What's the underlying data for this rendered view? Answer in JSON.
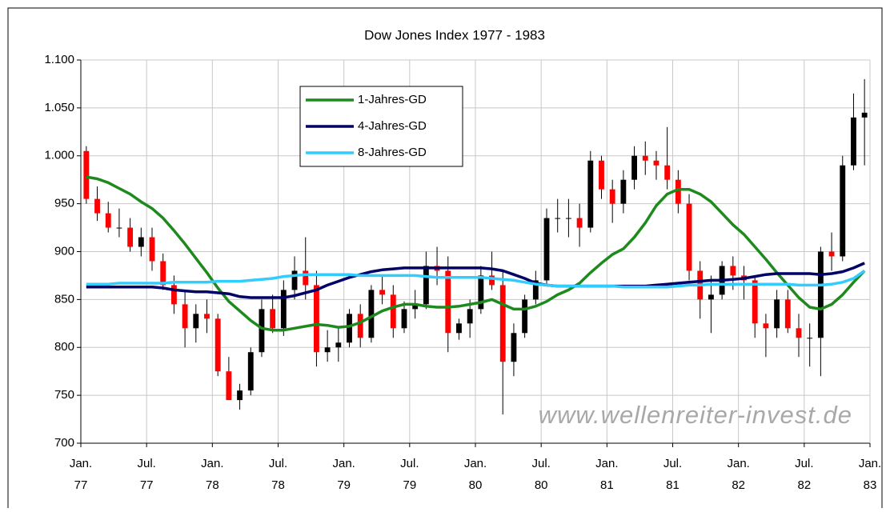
{
  "chart_data": {
    "type": "candlestick",
    "title": "Dow Jones Index 1977 - 1983",
    "x": [
      "1977-01",
      "1977-02",
      "1977-03",
      "1977-04",
      "1977-05",
      "1977-06",
      "1977-07",
      "1977-08",
      "1977-09",
      "1977-10",
      "1977-11",
      "1977-12",
      "1978-01",
      "1978-02",
      "1978-03",
      "1978-04",
      "1978-05",
      "1978-06",
      "1978-07",
      "1978-08",
      "1978-09",
      "1978-10",
      "1978-11",
      "1978-12",
      "1979-01",
      "1979-02",
      "1979-03",
      "1979-04",
      "1979-05",
      "1979-06",
      "1979-07",
      "1979-08",
      "1979-09",
      "1979-10",
      "1979-11",
      "1979-12",
      "1980-01",
      "1980-02",
      "1980-03",
      "1980-04",
      "1980-05",
      "1980-06",
      "1980-07",
      "1980-08",
      "1980-09",
      "1980-10",
      "1980-11",
      "1980-12",
      "1981-01",
      "1981-02",
      "1981-03",
      "1981-04",
      "1981-05",
      "1981-06",
      "1981-07",
      "1981-08",
      "1981-09",
      "1981-10",
      "1981-11",
      "1981-12",
      "1982-01",
      "1982-02",
      "1982-03",
      "1982-04",
      "1982-05",
      "1982-06",
      "1982-07",
      "1982-08",
      "1982-09",
      "1982-10",
      "1982-11",
      "1982-12"
    ],
    "open": [
      1005,
      955,
      940,
      925,
      925,
      905,
      915,
      890,
      865,
      845,
      820,
      835,
      830,
      775,
      745,
      755,
      795,
      840,
      820,
      860,
      880,
      865,
      795,
      800,
      805,
      835,
      810,
      860,
      855,
      820,
      840,
      845,
      885,
      880,
      815,
      825,
      840,
      875,
      865,
      785,
      815,
      850,
      870,
      935,
      935,
      935,
      925,
      995,
      965,
      950,
      975,
      1000,
      995,
      990,
      975,
      950,
      880,
      850,
      855,
      885,
      875,
      870,
      825,
      820,
      850,
      820,
      810,
      810,
      900,
      895,
      990,
      1040
    ],
    "high": [
      1010,
      968,
      952,
      945,
      935,
      925,
      925,
      898,
      875,
      860,
      845,
      850,
      835,
      790,
      762,
      800,
      850,
      855,
      870,
      895,
      915,
      880,
      818,
      820,
      840,
      845,
      865,
      875,
      865,
      848,
      860,
      900,
      905,
      895,
      830,
      850,
      885,
      900,
      880,
      825,
      855,
      880,
      945,
      955,
      955,
      950,
      1005,
      1000,
      975,
      985,
      1010,
      1015,
      1005,
      1030,
      985,
      960,
      890,
      875,
      890,
      895,
      885,
      875,
      835,
      860,
      860,
      835,
      825,
      905,
      920,
      1000,
      1065,
      1080
    ],
    "low": [
      950,
      932,
      920,
      915,
      900,
      895,
      880,
      860,
      835,
      800,
      805,
      815,
      770,
      745,
      735,
      750,
      790,
      815,
      812,
      850,
      850,
      780,
      785,
      785,
      800,
      800,
      805,
      845,
      810,
      815,
      830,
      840,
      865,
      795,
      808,
      810,
      835,
      860,
      730,
      770,
      810,
      845,
      865,
      920,
      915,
      905,
      920,
      955,
      930,
      940,
      965,
      980,
      975,
      965,
      940,
      870,
      830,
      815,
      850,
      860,
      850,
      810,
      790,
      810,
      815,
      790,
      780,
      770,
      880,
      890,
      985,
      990
    ],
    "close": [
      955,
      940,
      925,
      925,
      905,
      915,
      890,
      865,
      845,
      820,
      835,
      830,
      775,
      745,
      755,
      795,
      840,
      820,
      860,
      880,
      865,
      795,
      800,
      805,
      835,
      810,
      860,
      855,
      820,
      840,
      845,
      885,
      880,
      815,
      825,
      840,
      875,
      865,
      785,
      815,
      850,
      870,
      935,
      935,
      935,
      925,
      995,
      965,
      950,
      975,
      1000,
      995,
      990,
      975,
      950,
      880,
      850,
      855,
      885,
      875,
      870,
      825,
      820,
      850,
      820,
      810,
      810,
      900,
      895,
      990,
      1040,
      1045
    ],
    "up_color": "#000000",
    "down_color": "#ff0000",
    "series": [
      {
        "name": "1-Jahres-GD",
        "color": "#1e8a1e",
        "values": [
          978,
          976,
          972,
          966,
          960,
          952,
          945,
          935,
          922,
          908,
          893,
          878,
          862,
          848,
          838,
          828,
          820,
          818,
          818,
          820,
          822,
          824,
          823,
          821,
          822,
          826,
          832,
          838,
          842,
          845,
          845,
          843,
          842,
          842,
          843,
          845,
          847,
          850,
          845,
          840,
          840,
          843,
          848,
          855,
          860,
          867,
          878,
          888,
          897,
          903,
          915,
          930,
          948,
          960,
          965,
          965,
          960,
          952,
          940,
          928,
          918,
          905,
          892,
          878,
          865,
          852,
          842,
          840,
          845,
          855,
          868,
          880
        ]
      },
      {
        "name": "4-Jahres-GD",
        "color": "#000066",
        "values": [
          863,
          863,
          863,
          863,
          863,
          863,
          863,
          862,
          860,
          859,
          858,
          858,
          857,
          856,
          853,
          852,
          852,
          852,
          852,
          854,
          857,
          860,
          865,
          869,
          873,
          876,
          879,
          881,
          882,
          883,
          883,
          883,
          883,
          883,
          883,
          883,
          883,
          882,
          880,
          876,
          872,
          867,
          865,
          864,
          864,
          864,
          864,
          864,
          864,
          864,
          864,
          864,
          865,
          866,
          867,
          868,
          869,
          870,
          870,
          871,
          872,
          874,
          876,
          877,
          877,
          877,
          877,
          876,
          877,
          879,
          883,
          888
        ]
      },
      {
        "name": "8-Jahres-GD",
        "color": "#33ccff",
        "values": [
          866,
          866,
          866,
          867,
          867,
          867,
          867,
          867,
          868,
          868,
          868,
          868,
          869,
          869,
          869,
          870,
          871,
          872,
          874,
          875,
          876,
          876,
          876,
          876,
          876,
          875,
          875,
          875,
          875,
          875,
          875,
          874,
          873,
          873,
          873,
          873,
          873,
          872,
          871,
          870,
          868,
          866,
          865,
          864,
          864,
          864,
          864,
          864,
          864,
          863,
          863,
          863,
          863,
          863,
          864,
          865,
          865,
          866,
          866,
          866,
          866,
          866,
          866,
          866,
          866,
          865,
          865,
          865,
          866,
          868,
          872,
          880
        ]
      }
    ],
    "xlim": [
      "1977-01",
      "1983-01"
    ],
    "xticks": [
      {
        "value": "1977-01",
        "label": [
          "Jan.",
          "77"
        ]
      },
      {
        "value": "1977-07",
        "label": [
          "Jul.",
          "77"
        ]
      },
      {
        "value": "1978-01",
        "label": [
          "Jan.",
          "78"
        ]
      },
      {
        "value": "1978-07",
        "label": [
          "Jul.",
          "78"
        ]
      },
      {
        "value": "1979-01",
        "label": [
          "Jan.",
          "79"
        ]
      },
      {
        "value": "1979-07",
        "label": [
          "Jul.",
          "79"
        ]
      },
      {
        "value": "1980-01",
        "label": [
          "Jan.",
          "80"
        ]
      },
      {
        "value": "1980-07",
        "label": [
          "Jul.",
          "80"
        ]
      },
      {
        "value": "1981-01",
        "label": [
          "Jan.",
          "81"
        ]
      },
      {
        "value": "1981-07",
        "label": [
          "Jul.",
          "81"
        ]
      },
      {
        "value": "1982-01",
        "label": [
          "Jan.",
          "82"
        ]
      },
      {
        "value": "1982-07",
        "label": [
          "Jul.",
          "82"
        ]
      },
      {
        "value": "1983-01",
        "label": [
          "Jan.",
          "83"
        ]
      }
    ],
    "ylim": [
      700,
      1100
    ],
    "yticks": [
      700,
      750,
      800,
      850,
      900,
      950,
      {
        "value": 1000,
        "label": "1.000"
      },
      {
        "value": 1050,
        "label": "1.050"
      },
      {
        "value": 1100,
        "label": "1.100"
      }
    ],
    "grid": true,
    "legend": "upper center",
    "watermark": "www.wellenreiter-invest.de"
  }
}
